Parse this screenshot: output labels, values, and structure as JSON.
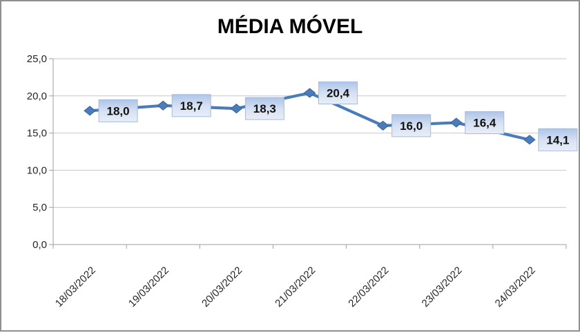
{
  "window": {
    "background_color": "#ffffff",
    "border_color": "#8f8f8f"
  },
  "chart_data": {
    "type": "line",
    "title": "MÉDIA MÓVEL",
    "xlabel": "",
    "ylabel": "",
    "categories": [
      "18/03/2022",
      "19/03/2022",
      "20/03/2022",
      "21/03/2022",
      "22/03/2022",
      "23/03/2022",
      "24/03/2022"
    ],
    "values": [
      18.0,
      18.7,
      18.3,
      20.4,
      16.0,
      16.4,
      14.1
    ],
    "data_labels": [
      "18,0",
      "18,7",
      "18,3",
      "20,4",
      "16,0",
      "16,4",
      "14,1"
    ],
    "ylim": [
      0,
      25
    ],
    "ytick_step": 5,
    "ytick_labels": [
      "0,0",
      "5,0",
      "10,0",
      "15,0",
      "20,0",
      "25,0"
    ],
    "grid": true,
    "legend": "none",
    "marker": "diamond",
    "colors": {
      "line": "#4a7cba",
      "marker_fill": "#4a7cba",
      "marker_stroke": "#38669c",
      "grid": "#c6c6c6",
      "axis": "#9e9e9e",
      "tick_text": "#262626",
      "label_text": "#111111",
      "label_box_top": "#aec5e8",
      "label_box_mid": "#d9e2f3",
      "label_box_bottom": "#e8eef8",
      "label_box_border": "#a4bbde"
    }
  }
}
